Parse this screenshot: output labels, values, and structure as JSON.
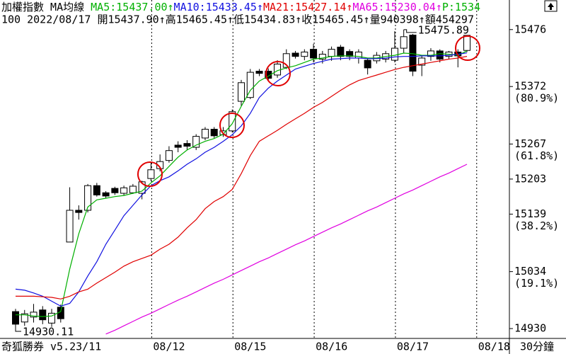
{
  "header": {
    "title": "加權指數",
    "indicator": "MA均線",
    "p_reading": "P:1534",
    "p_color": "#00b000",
    "quote": "100 2022/08/17 開15437.90↑高15465.45↑低15434.83↑收15465.45↑量940398↑額454297"
  },
  "chart_data": {
    "type": "candlestick",
    "categories": [
      null,
      null,
      null,
      null,
      null,
      null,
      null,
      null,
      null,
      null,
      null,
      null,
      null,
      null,
      null,
      "08/12",
      null,
      null,
      null,
      null,
      null,
      null,
      null,
      null,
      "08/15",
      null,
      null,
      null,
      null,
      null,
      null,
      null,
      null,
      "08/16",
      null,
      null,
      null,
      null,
      null,
      null,
      null,
      null,
      "08/17",
      null,
      null,
      null,
      null,
      null,
      null,
      null,
      null,
      "08/18"
    ],
    "candles": {
      "open": [
        14961,
        14942,
        14951,
        14964,
        14940,
        14969,
        15088,
        15146,
        15146,
        15191,
        15178,
        15186,
        15177,
        15178,
        15177,
        15204,
        15222,
        15237,
        15265,
        15268,
        15261,
        15278,
        15294,
        15284,
        15291,
        15345,
        15352,
        15400,
        15400,
        15393,
        15407,
        15433,
        15427,
        15440,
        15422,
        15427,
        15444,
        15436,
        15424,
        15420,
        15419,
        15422,
        15420,
        15442,
        15466,
        15411,
        15427,
        15437,
        15427,
        15435,
        15437.9,
        null
      ],
      "high": [
        14966,
        14964,
        14975,
        14971,
        14966,
        14974,
        15188,
        15155,
        15194,
        15196,
        15181,
        15189,
        15191,
        15194,
        15200,
        15233,
        15248,
        15263,
        15272,
        15274,
        15285,
        15298,
        15298,
        15298,
        15330,
        15384,
        15404,
        15404,
        15405,
        15420,
        15440,
        15437,
        15440,
        15450,
        15437,
        15445,
        15448,
        15440,
        15440,
        15424,
        15435,
        15437,
        15473,
        15475.89,
        15468,
        15429,
        15442,
        15440,
        15437,
        15440,
        15465.45,
        null
      ],
      "low": [
        14930.11,
        14935,
        14941,
        14938,
        14933,
        14941,
        15088,
        15129,
        15142,
        15171,
        15168,
        15174,
        15173,
        15176,
        15166,
        15199,
        15217,
        15233,
        15252,
        15256,
        15256,
        15274,
        15278,
        15280,
        15288,
        15336,
        15349,
        15391,
        15383,
        15388,
        15404,
        15423,
        15420,
        15416,
        15414,
        15419,
        15420,
        15420,
        15414,
        15394,
        15414,
        15416,
        15416,
        15433,
        15391,
        15391,
        15419,
        15416,
        15422,
        15407,
        15434.83,
        null
      ],
      "close": [
        14938,
        14957,
        14960,
        14946,
        14958,
        14948,
        15146,
        15142,
        15191,
        15174,
        15172,
        15178,
        15187,
        15190,
        15198,
        15220,
        15235,
        15255,
        15261,
        15263,
        15281,
        15294,
        15282,
        15291,
        15326,
        15379,
        15398,
        15396,
        15387,
        15413,
        15432,
        15427,
        15435,
        15424,
        15431,
        15440,
        15427,
        15427,
        15435,
        15406,
        15429,
        15432,
        15442,
        15463,
        15400,
        15424,
        15437,
        15422,
        15435,
        15428,
        15465.45,
        null
      ]
    },
    "up_color": "#ffffff",
    "down_color": "#000000",
    "outline_color": "#000000",
    "series": [
      {
        "label": "MA5:15437.00↑",
        "color": "#00b000",
        "values": [
          14955,
          14955,
          14953,
          14952,
          14953,
          14961,
          15039,
          15103,
          15152,
          15165,
          15168,
          15171,
          15173,
          15177,
          15181,
          15196,
          15209,
          15226,
          15243,
          15256,
          15265,
          15272,
          15277,
          15285,
          15304,
          15336,
          15365,
          15382,
          15391,
          15401,
          15406,
          15410,
          15416,
          15422,
          15424,
          15427,
          15428,
          15428,
          15427,
          15424,
          15424,
          15427,
          15429,
          15433,
          15432,
          15429,
          15429,
          15432,
          15431,
          15429,
          15437.0,
          null
        ]
      },
      {
        "label": "MA10:15433.45↑",
        "color": "#1010e0",
        "values": [
          15002,
          15000,
          14995,
          14989,
          14980,
          14971,
          14976,
          14997,
          15026,
          15052,
          15084,
          15110,
          15136,
          15155,
          15174,
          15191,
          15200,
          15207,
          15218,
          15230,
          15240,
          15252,
          15261,
          15272,
          15284,
          15300,
          15323,
          15352,
          15369,
          15382,
          15393,
          15404,
          15409,
          15414,
          15418,
          15422,
          15423,
          15424,
          15424,
          15423,
          15423,
          15424,
          15426,
          15427,
          15427,
          15428,
          15428,
          15428,
          15429,
          15431,
          15433.45,
          null
        ]
      },
      {
        "label": "MA21:15427.14↑",
        "color": "#e00000",
        "values": [
          14989,
          14989,
          14989,
          14988,
          14987,
          14984,
          14989,
          14997,
          15002,
          15013,
          15023,
          15033,
          15044,
          15052,
          15058,
          15064,
          15075,
          15084,
          15097,
          15114,
          15129,
          15149,
          15162,
          15171,
          15184,
          15213,
          15246,
          15272,
          15282,
          15292,
          15303,
          15313,
          15323,
          15334,
          15343,
          15354,
          15365,
          15375,
          15383,
          15388,
          15393,
          15398,
          15403,
          15407,
          15410,
          15413,
          15416,
          15419,
          15422,
          15424,
          15427.14,
          null
        ]
      },
      {
        "label": "MA65:15230.04↑",
        "color": "#e000e0",
        "values": [
          null,
          null,
          null,
          null,
          null,
          null,
          null,
          null,
          null,
          null,
          14920,
          14927,
          14935,
          14943,
          14951,
          14958,
          14966,
          14974,
          14982,
          14989,
          14997,
          15005,
          15013,
          15020,
          15028,
          15036,
          15044,
          15052,
          15059,
          15067,
          15075,
          15083,
          15090,
          15098,
          15106,
          15114,
          15121,
          15129,
          15137,
          15145,
          15152,
          15160,
          15168,
          15176,
          15183,
          15191,
          15199,
          15207,
          15214,
          15222,
          15230.04,
          null
        ]
      }
    ],
    "ylim": [
      14912,
      15530
    ],
    "yticks": [
      15476,
      15372,
      15267,
      15203,
      15139,
      15034,
      14930
    ],
    "ytick_notes": [
      null,
      "(80.9%)",
      "(61.8%)",
      null,
      "(38.2%)",
      "(19.1%)",
      null
    ]
  },
  "footer": {
    "app": "奇狐勝券 v5.23/11",
    "period": "30分鐘"
  }
}
